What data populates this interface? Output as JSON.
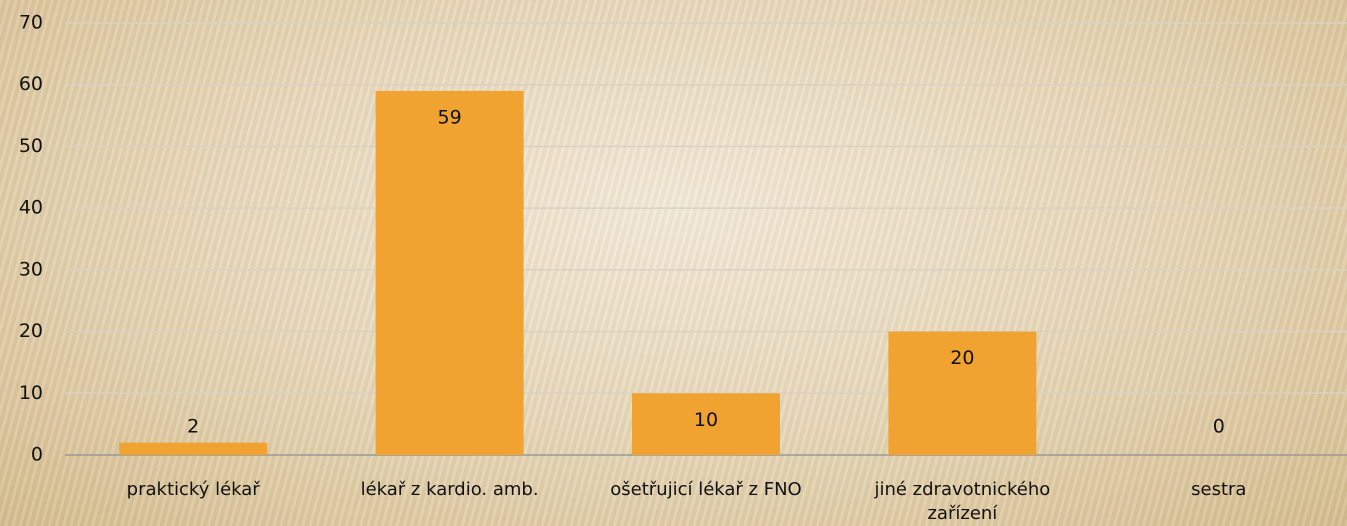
{
  "chart_data": {
    "type": "bar",
    "categories": [
      "praktický lékař",
      "lékař z kardio. amb.",
      "ošetřujicí lékař z FNO",
      "jiné zdravotnického zařízení",
      "sestra"
    ],
    "values": [
      2,
      59,
      10,
      20,
      0
    ],
    "color": "#f0a330",
    "ylim": [
      0,
      70
    ],
    "yticks": [
      0,
      10,
      20,
      30,
      40,
      50,
      60,
      70
    ],
    "grid": true
  }
}
